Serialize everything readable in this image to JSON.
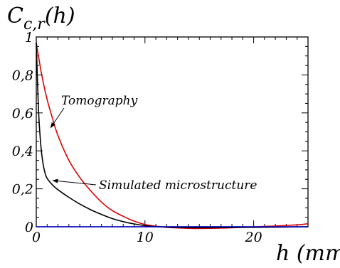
{
  "chart_data": {
    "type": "line",
    "title": "",
    "ylabel": "C_{c,r}(h)",
    "ylabel_main": "C",
    "ylabel_sub": "c,r",
    "ylabel_arg": "(h)",
    "xlabel": "h (mm)",
    "xlim": [
      0,
      25
    ],
    "ylim": [
      0,
      1
    ],
    "x_ticks": [
      0,
      10,
      20
    ],
    "x_tick_labels": [
      "0",
      "10",
      "20"
    ],
    "y_ticks": [
      0,
      0.2,
      0.4,
      0.6,
      0.8,
      1
    ],
    "y_tick_labels": [
      "0",
      "0,2",
      "0,4",
      "0,6",
      "0,8",
      "1"
    ],
    "grid": false,
    "series": [
      {
        "name": "Tomography",
        "color": "#e00000",
        "x": [
          0,
          0.5,
          1,
          1.5,
          2,
          3,
          4,
          5,
          6,
          7,
          8,
          9,
          10,
          11,
          12,
          13,
          14,
          15,
          16,
          17,
          18,
          19,
          20,
          21,
          22,
          23,
          24,
          25
        ],
        "y": [
          0.97,
          0.8,
          0.67,
          0.57,
          0.48,
          0.35,
          0.26,
          0.19,
          0.13,
          0.085,
          0.055,
          0.03,
          0.012,
          0.003,
          -0.003,
          -0.006,
          -0.008,
          -0.009,
          -0.008,
          -0.007,
          -0.005,
          -0.003,
          -0.001,
          0.002,
          0.004,
          0.007,
          0.01,
          0.016
        ]
      },
      {
        "name": "Simulated microstructure",
        "color": "#000000",
        "x": [
          0,
          0.2,
          0.4,
          0.6,
          0.8,
          1,
          1.5,
          2,
          3,
          4,
          5,
          6,
          7,
          8,
          9,
          10,
          11,
          12,
          13,
          14,
          15,
          16,
          17,
          18,
          19,
          20,
          22,
          25
        ],
        "y": [
          0.97,
          0.62,
          0.44,
          0.34,
          0.285,
          0.255,
          0.22,
          0.195,
          0.155,
          0.12,
          0.09,
          0.065,
          0.043,
          0.027,
          0.015,
          0.006,
          0.001,
          -0.002,
          -0.004,
          -0.005,
          -0.005,
          -0.005,
          -0.004,
          -0.004,
          -0.003,
          -0.003,
          -0.002,
          0
        ]
      },
      {
        "name": "",
        "color": "#0000cc",
        "x": [
          0,
          25
        ],
        "y": [
          0,
          0
        ]
      }
    ],
    "annotations": [
      {
        "text": "Tomography",
        "arrow_to": [
          1.2,
          0.53
        ]
      },
      {
        "text": "Simulated microstructure",
        "arrow_to": [
          1.4,
          0.24
        ]
      }
    ]
  }
}
